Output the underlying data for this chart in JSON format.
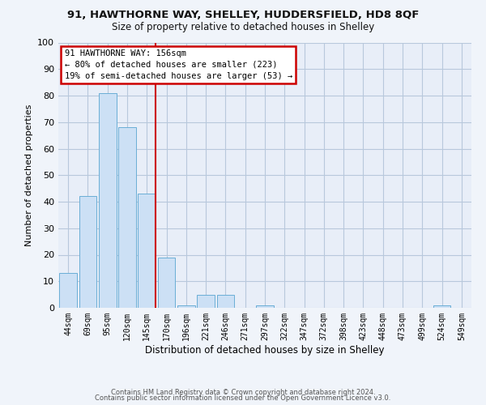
{
  "title": "91, HAWTHORNE WAY, SHELLEY, HUDDERSFIELD, HD8 8QF",
  "subtitle": "Size of property relative to detached houses in Shelley",
  "xlabel": "Distribution of detached houses by size in Shelley",
  "ylabel": "Number of detached properties",
  "bar_labels": [
    "44sqm",
    "69sqm",
    "95sqm",
    "120sqm",
    "145sqm",
    "170sqm",
    "196sqm",
    "221sqm",
    "246sqm",
    "271sqm",
    "297sqm",
    "322sqm",
    "347sqm",
    "372sqm",
    "398sqm",
    "423sqm",
    "448sqm",
    "473sqm",
    "499sqm",
    "524sqm",
    "549sqm"
  ],
  "bar_values": [
    13,
    42,
    81,
    68,
    43,
    19,
    1,
    5,
    5,
    0,
    1,
    0,
    0,
    0,
    0,
    0,
    0,
    0,
    0,
    1,
    0
  ],
  "bar_color": "#cce0f5",
  "bar_edge_color": "#6aaed6",
  "vline_color": "#cc0000",
  "ylim": [
    0,
    100
  ],
  "yticks": [
    0,
    10,
    20,
    30,
    40,
    50,
    60,
    70,
    80,
    90,
    100
  ],
  "annotation_title": "91 HAWTHORNE WAY: 156sqm",
  "annotation_line1": "← 80% of detached houses are smaller (223)",
  "annotation_line2": "19% of semi-detached houses are larger (53) →",
  "annotation_box_color": "#cc0000",
  "footer1": "Contains HM Land Registry data © Crown copyright and database right 2024.",
  "footer2": "Contains public sector information licensed under the Open Government Licence v3.0.",
  "background_color": "#f0f4fa",
  "plot_bg_color": "#e8eef8",
  "grid_color": "#b8c8dc"
}
